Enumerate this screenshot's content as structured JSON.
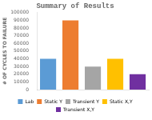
{
  "chart_data": {
    "type": "bar",
    "title": "Summary of Results",
    "categories": [
      "Lab",
      "Static Y",
      "Transient Y",
      "Static X,Y",
      "Transient X,Y"
    ],
    "values": [
      40000,
      90000,
      30000,
      40000,
      20000
    ],
    "colors": [
      "#5B9BD5",
      "#ED7D31",
      "#A5A5A5",
      "#FFC000",
      "#7030A0"
    ],
    "ylabel": "# OF CYCLES TO FAILURE",
    "ylim": [
      0,
      100000
    ],
    "yticks": [
      0,
      10000,
      20000,
      30000,
      40000,
      50000,
      60000,
      70000,
      80000,
      90000,
      100000
    ],
    "grid": false,
    "legend": "bottom",
    "tick_labels": "y"
  }
}
